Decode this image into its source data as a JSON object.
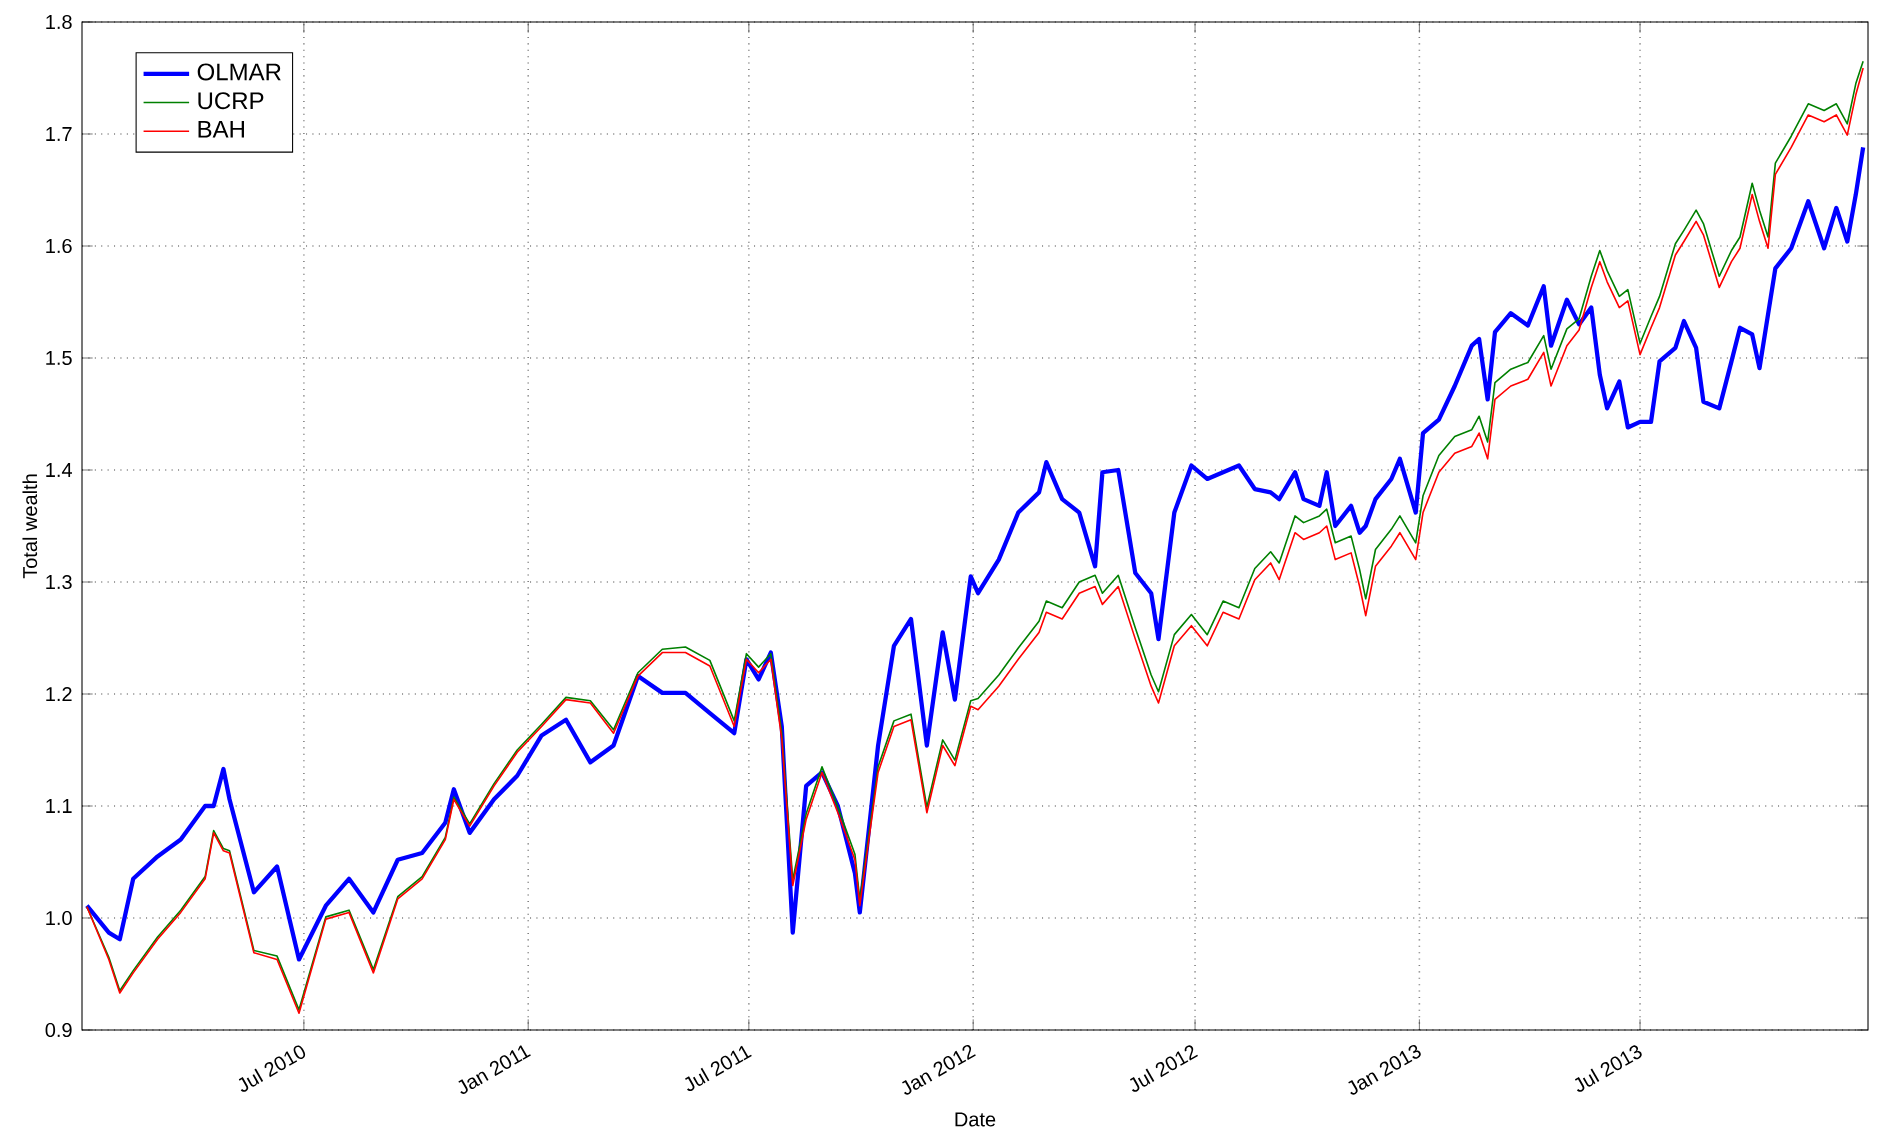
{
  "chart_data": {
    "type": "line",
    "xlabel": "Date",
    "ylabel": "Total wealth",
    "x": [
      "2010-01-04",
      "2010-01-22",
      "2010-01-31",
      "2010-02-11",
      "2010-03-03",
      "2010-03-22",
      "2010-04-11",
      "2010-04-18",
      "2010-04-26",
      "2010-05-01",
      "2010-05-21",
      "2010-06-09",
      "2010-06-27",
      "2010-07-19",
      "2010-08-07",
      "2010-08-27",
      "2010-09-16",
      "2010-10-06",
      "2010-10-25",
      "2010-11-01",
      "2010-11-14",
      "2010-12-04",
      "2010-12-23",
      "2011-01-12",
      "2011-02-01",
      "2011-02-21",
      "2011-03-12",
      "2011-04-01",
      "2011-04-21",
      "2011-05-10",
      "2011-05-30",
      "2011-06-19",
      "2011-06-29",
      "2011-07-09",
      "2011-07-19",
      "2011-07-28",
      "2011-08-06",
      "2011-08-17",
      "2011-08-30",
      "2011-09-12",
      "2011-09-26",
      "2011-09-30",
      "2011-10-15",
      "2011-10-28",
      "2011-11-11",
      "2011-11-24",
      "2011-12-07",
      "2011-12-17",
      "2011-12-30",
      "2012-01-05",
      "2012-01-22",
      "2012-02-07",
      "2012-02-24",
      "2012-03-01",
      "2012-03-14",
      "2012-03-28",
      "2012-04-10",
      "2012-04-16",
      "2012-04-29",
      "2012-05-13",
      "2012-05-26",
      "2012-06-01",
      "2012-06-14",
      "2012-06-28",
      "2012-07-11",
      "2012-07-24",
      "2012-08-06",
      "2012-08-19",
      "2012-09-01",
      "2012-09-08",
      "2012-09-21",
      "2012-09-28",
      "2012-10-11",
      "2012-10-17",
      "2012-10-24",
      "2012-11-06",
      "2012-11-13",
      "2012-11-18",
      "2012-11-26",
      "2012-12-09",
      "2012-12-16",
      "2012-12-29",
      "2013-01-04",
      "2013-01-17",
      "2013-01-30",
      "2013-02-13",
      "2013-02-19",
      "2013-02-26",
      "2013-03-04",
      "2013-03-17",
      "2013-03-31",
      "2013-04-13",
      "2013-04-19",
      "2013-05-02",
      "2013-05-12",
      "2013-05-22",
      "2013-05-29",
      "2013-06-04",
      "2013-06-14",
      "2013-06-21",
      "2013-07-01",
      "2013-07-10",
      "2013-07-17",
      "2013-07-30",
      "2013-08-06",
      "2013-08-16",
      "2013-08-22",
      "2013-09-04",
      "2013-09-14",
      "2013-09-21",
      "2013-10-01",
      "2013-10-07",
      "2013-10-14",
      "2013-10-20",
      "2013-11-02",
      "2013-11-16",
      "2013-11-29",
      "2013-12-09",
      "2013-12-18",
      "2013-12-25",
      "2013-12-31"
    ],
    "series": [
      {
        "name": "OLMAR",
        "color": "#0000ff",
        "values": [
          1.011,
          0.987,
          0.981,
          1.035,
          1.055,
          1.07,
          1.1,
          1.1,
          1.133,
          1.106,
          1.023,
          1.046,
          0.963,
          1.011,
          1.035,
          1.005,
          1.052,
          1.058,
          1.085,
          1.115,
          1.076,
          1.106,
          1.127,
          1.163,
          1.177,
          1.139,
          1.154,
          1.216,
          1.201,
          1.201,
          1.183,
          1.165,
          1.231,
          1.213,
          1.237,
          1.171,
          0.987,
          1.118,
          1.13,
          1.1,
          1.04,
          1.005,
          1.154,
          1.243,
          1.267,
          1.154,
          1.255,
          1.195,
          1.305,
          1.29,
          1.32,
          1.362,
          1.38,
          1.407,
          1.374,
          1.362,
          1.314,
          1.398,
          1.4,
          1.308,
          1.29,
          1.249,
          1.362,
          1.404,
          1.392,
          1.398,
          1.404,
          1.383,
          1.38,
          1.374,
          1.398,
          1.374,
          1.368,
          1.398,
          1.35,
          1.368,
          1.344,
          1.35,
          1.374,
          1.392,
          1.41,
          1.362,
          1.433,
          1.445,
          1.475,
          1.511,
          1.517,
          1.463,
          1.523,
          1.54,
          1.529,
          1.564,
          1.511,
          1.552,
          1.53,
          1.545,
          1.485,
          1.455,
          1.479,
          1.438,
          1.443,
          1.443,
          1.497,
          1.509,
          1.533,
          1.509,
          1.461,
          1.455,
          1.497,
          1.527,
          1.521,
          1.491,
          1.539,
          1.58,
          1.598,
          1.64,
          1.598,
          1.634,
          1.604,
          1.646,
          1.688
        ]
      },
      {
        "name": "UCRP",
        "color": "#008000",
        "values": [
          1.01,
          0.965,
          0.935,
          0.953,
          0.983,
          1.007,
          1.037,
          1.078,
          1.062,
          1.06,
          0.971,
          0.966,
          0.918,
          1.001,
          1.007,
          0.954,
          1.019,
          1.037,
          1.072,
          1.108,
          1.084,
          1.12,
          1.15,
          1.173,
          1.197,
          1.194,
          1.168,
          1.219,
          1.24,
          1.242,
          1.23,
          1.176,
          1.236,
          1.224,
          1.236,
          1.165,
          1.034,
          1.093,
          1.135,
          1.099,
          1.057,
          1.016,
          1.135,
          1.176,
          1.182,
          1.099,
          1.159,
          1.141,
          1.194,
          1.196,
          1.217,
          1.241,
          1.265,
          1.283,
          1.277,
          1.3,
          1.306,
          1.29,
          1.306,
          1.259,
          1.217,
          1.202,
          1.253,
          1.271,
          1.253,
          1.283,
          1.277,
          1.312,
          1.327,
          1.317,
          1.359,
          1.353,
          1.359,
          1.365,
          1.335,
          1.341,
          1.311,
          1.285,
          1.329,
          1.347,
          1.359,
          1.335,
          1.377,
          1.413,
          1.43,
          1.436,
          1.448,
          1.425,
          1.478,
          1.49,
          1.496,
          1.52,
          1.49,
          1.526,
          1.535,
          1.573,
          1.596,
          1.578,
          1.555,
          1.561,
          1.513,
          1.537,
          1.555,
          1.602,
          1.614,
          1.632,
          1.62,
          1.573,
          1.596,
          1.608,
          1.656,
          1.632,
          1.608,
          1.674,
          1.698,
          1.727,
          1.721,
          1.727,
          1.709,
          1.745,
          1.765
        ]
      },
      {
        "name": "BAH",
        "color": "#ff0000",
        "values": [
          1.01,
          0.963,
          0.933,
          0.951,
          0.981,
          1.005,
          1.035,
          1.076,
          1.06,
          1.058,
          0.969,
          0.963,
          0.915,
          0.999,
          1.005,
          0.951,
          1.017,
          1.035,
          1.07,
          1.106,
          1.082,
          1.118,
          1.148,
          1.171,
          1.195,
          1.192,
          1.165,
          1.216,
          1.237,
          1.237,
          1.225,
          1.171,
          1.231,
          1.219,
          1.231,
          1.16,
          1.029,
          1.088,
          1.13,
          1.094,
          1.052,
          1.011,
          1.13,
          1.171,
          1.177,
          1.094,
          1.154,
          1.136,
          1.189,
          1.186,
          1.207,
          1.231,
          1.255,
          1.273,
          1.267,
          1.29,
          1.296,
          1.28,
          1.296,
          1.249,
          1.207,
          1.192,
          1.243,
          1.261,
          1.243,
          1.273,
          1.267,
          1.302,
          1.317,
          1.302,
          1.344,
          1.338,
          1.344,
          1.35,
          1.32,
          1.326,
          1.296,
          1.27,
          1.314,
          1.332,
          1.344,
          1.32,
          1.362,
          1.398,
          1.415,
          1.421,
          1.433,
          1.41,
          1.463,
          1.475,
          1.481,
          1.505,
          1.475,
          1.511,
          1.525,
          1.563,
          1.586,
          1.568,
          1.545,
          1.551,
          1.503,
          1.527,
          1.545,
          1.592,
          1.604,
          1.622,
          1.61,
          1.563,
          1.586,
          1.598,
          1.646,
          1.622,
          1.598,
          1.664,
          1.688,
          1.717,
          1.711,
          1.717,
          1.699,
          1.735,
          1.759
        ]
      }
    ],
    "xlim": [
      "2009-12-31",
      "2014-01-04"
    ],
    "xticks": [
      {
        "value": "2010-07-01",
        "label": "Jul 2010"
      },
      {
        "value": "2011-01-01",
        "label": "Jan 2011"
      },
      {
        "value": "2011-07-01",
        "label": "Jul 2011"
      },
      {
        "value": "2012-01-01",
        "label": "Jan 2012"
      },
      {
        "value": "2012-07-01",
        "label": "Jul 2012"
      },
      {
        "value": "2013-01-01",
        "label": "Jan 2013"
      },
      {
        "value": "2013-07-01",
        "label": "Jul 2013"
      }
    ],
    "ylim": [
      0.9,
      1.8
    ],
    "yticks": [
      {
        "value": 0.9,
        "label": "0.9"
      },
      {
        "value": 1.0,
        "label": "1.0"
      },
      {
        "value": 1.1,
        "label": "1.1"
      },
      {
        "value": 1.2,
        "label": "1.2"
      },
      {
        "value": 1.3,
        "label": "1.3"
      },
      {
        "value": 1.4,
        "label": "1.4"
      },
      {
        "value": 1.5,
        "label": "1.5"
      },
      {
        "value": 1.6,
        "label": "1.6"
      },
      {
        "value": 1.7,
        "label": "1.7"
      },
      {
        "value": 1.8,
        "label": "1.8"
      }
    ],
    "grid": true,
    "legend": "top left"
  }
}
